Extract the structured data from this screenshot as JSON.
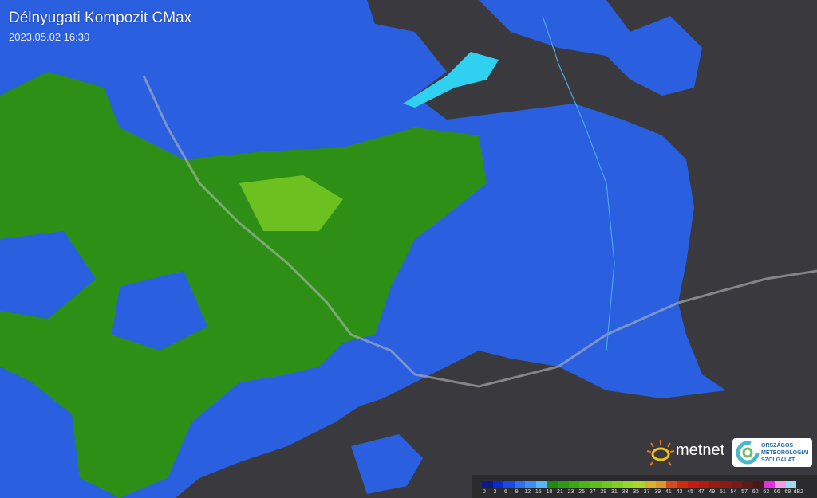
{
  "header": {
    "title": "Délnyugati Kompozit CMax",
    "timestamp": "2023.05.02 16:30"
  },
  "legend": {
    "unit": "dBZ",
    "ticks": [
      "0",
      "3",
      "6",
      "9",
      "12",
      "15",
      "18",
      "21",
      "23",
      "25",
      "27",
      "29",
      "31",
      "33",
      "35",
      "37",
      "39",
      "41",
      "43",
      "45",
      "47",
      "49",
      "51",
      "54",
      "57",
      "60",
      "63",
      "66",
      "69"
    ],
    "colors": [
      "#0a1a8a",
      "#0a2ad0",
      "#1a4ae6",
      "#2f6ff0",
      "#3f8ff2",
      "#5ab4f8",
      "#1f8a10",
      "#2c9a12",
      "#3aa814",
      "#4cb418",
      "#5cbe1c",
      "#6cc820",
      "#80d024",
      "#94d82a",
      "#a8d82c",
      "#d8b030",
      "#d89a30",
      "#d84a20",
      "#d42a10",
      "#c41a10",
      "#b01a10",
      "#9a1a10",
      "#8a1a14",
      "#7a1a14",
      "#5a1a18",
      "#4a1818",
      "#e030e0",
      "#f0a0e0",
      "#a0d8f0"
    ]
  },
  "logos": {
    "metnet": "metnet",
    "omsz": [
      "ORSZÁGOS",
      "METEOROLÓGIAI",
      "SZOLGÁLAT"
    ]
  },
  "map": {
    "background": "#3a3a3e",
    "radar_blue": "#2a5fe0",
    "radar_green": "#2e8f16",
    "water": "#30d0f0"
  }
}
